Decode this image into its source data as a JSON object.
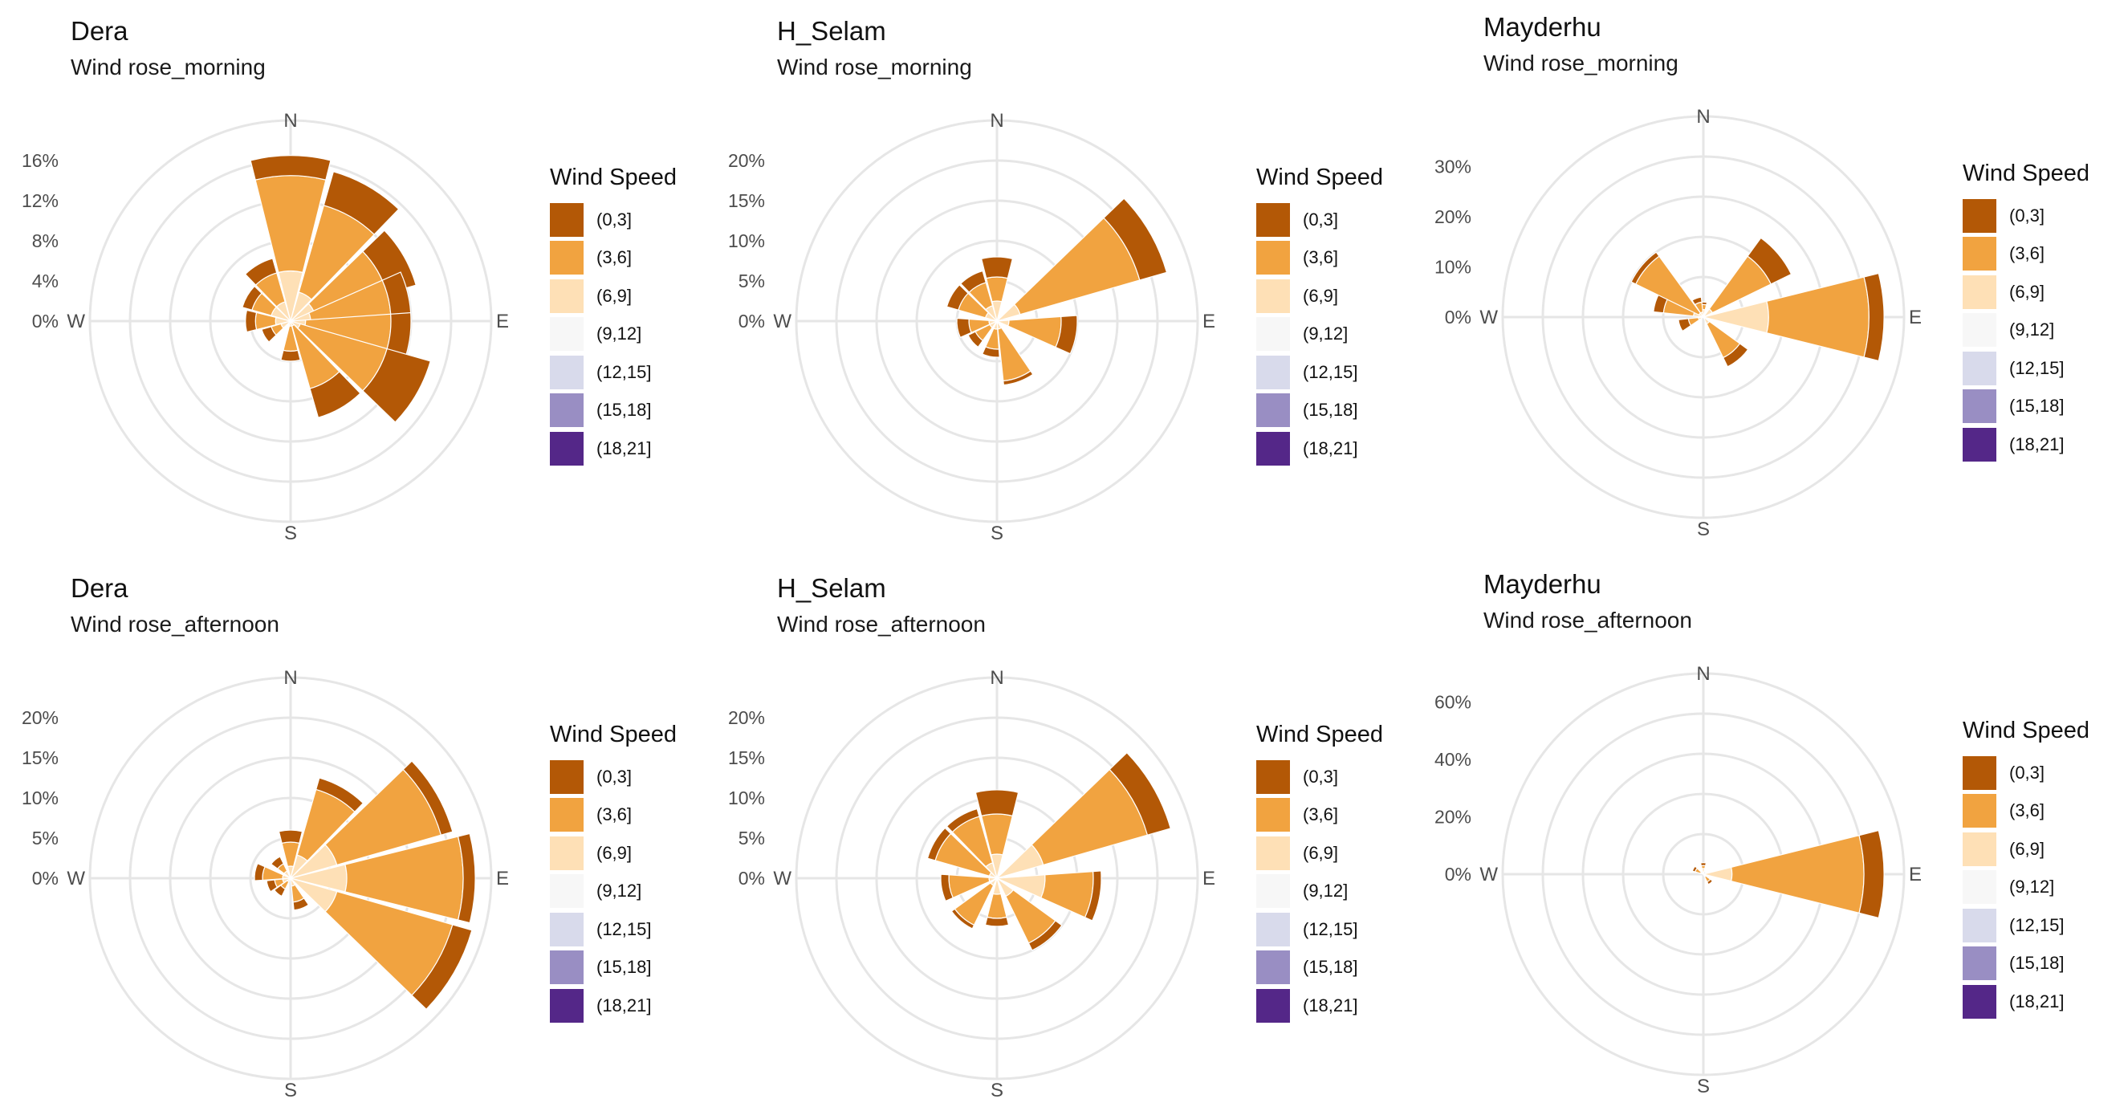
{
  "legend": {
    "title": "Wind Speed",
    "bins": [
      "(0,3]",
      "(3,6]",
      "(6,9]",
      "(9,12]",
      "(12,15]",
      "(15,18]",
      "(18,21]"
    ],
    "colors": [
      "#b35806",
      "#f1a340",
      "#fee0b6",
      "#f7f7f7",
      "#d8daeb",
      "#998ec3",
      "#542788"
    ]
  },
  "chart_data": [
    {
      "type": "wind_rose",
      "title": "Dera",
      "subtitle": "Wind rose_morning",
      "directions": [
        "N",
        "E",
        "S",
        "W"
      ],
      "rmax": 20,
      "ticks": [
        0,
        4,
        8,
        12,
        16
      ],
      "tick_labels": [
        "0%",
        "4%",
        "8%",
        "12%",
        "16%"
      ],
      "sectors": [
        {
          "bearing": 0,
          "cum": [
            5,
            14.5,
            16.5
          ]
        },
        {
          "bearing": 30,
          "cum": [
            3,
            12,
            15.5
          ]
        },
        {
          "bearing": 60,
          "cum": [
            2.5,
            10,
            13
          ]
        },
        {
          "bearing": 80,
          "cum": [
            2,
            10,
            12
          ]
        },
        {
          "bearing": 100,
          "cum": [
            1.5,
            10,
            12
          ]
        },
        {
          "bearing": 120,
          "cum": [
            1,
            10,
            14.5
          ]
        },
        {
          "bearing": 150,
          "cum": [
            0.5,
            7,
            10
          ]
        },
        {
          "bearing": 180,
          "cum": [
            0.5,
            3,
            4
          ]
        },
        {
          "bearing": 240,
          "cum": [
            1,
            2,
            3
          ]
        },
        {
          "bearing": 270,
          "cum": [
            1.5,
            3.5,
            4.5
          ]
        },
        {
          "bearing": 300,
          "cum": [
            2,
            4,
            5
          ]
        },
        {
          "bearing": 330,
          "cum": [
            2,
            5,
            6.5
          ]
        }
      ]
    },
    {
      "type": "wind_rose",
      "title": "H_Selam",
      "subtitle": "Wind rose_morning",
      "directions": [
        "N",
        "E",
        "S",
        "W"
      ],
      "rmax": 25,
      "ticks": [
        0,
        5,
        10,
        15,
        20
      ],
      "tick_labels": [
        "0%",
        "5%",
        "10%",
        "15%",
        "20%"
      ],
      "sectors": [
        {
          "bearing": 0,
          "cum": [
            2.5,
            5.5,
            8
          ]
        },
        {
          "bearing": 60,
          "cum": [
            3,
            18.5,
            22
          ]
        },
        {
          "bearing": 100,
          "cum": [
            1.5,
            8,
            10
          ]
        },
        {
          "bearing": 160,
          "cum": [
            1,
            7.5,
            8
          ]
        },
        {
          "bearing": 190,
          "cum": [
            1,
            3.5,
            4.5
          ]
        },
        {
          "bearing": 230,
          "cum": [
            1,
            3,
            4
          ]
        },
        {
          "bearing": 260,
          "cum": [
            1,
            3.5,
            5
          ]
        },
        {
          "bearing": 300,
          "cum": [
            1.5,
            5,
            6.5
          ]
        },
        {
          "bearing": 330,
          "cum": [
            2,
            5,
            6.5
          ]
        }
      ]
    },
    {
      "type": "wind_rose",
      "title": "Mayderhu",
      "subtitle": "Wind rose_morning",
      "directions": [
        "N",
        "E",
        "S",
        "W"
      ],
      "rmax": 40,
      "ticks": [
        0,
        10,
        20,
        30
      ],
      "tick_labels": [
        "0%",
        "10%",
        "20%",
        "30%"
      ],
      "sectors": [
        {
          "bearing": 0,
          "cum": [
            1.5,
            2.5,
            3
          ]
        },
        {
          "bearing": 50,
          "cum": [
            2,
            15,
            19.5
          ]
        },
        {
          "bearing": 90,
          "cum": [
            13,
            33,
            36
          ]
        },
        {
          "bearing": 140,
          "cum": [
            1.5,
            9,
            11
          ]
        },
        {
          "bearing": 250,
          "cum": [
            1,
            3,
            5
          ]
        },
        {
          "bearing": 290,
          "cum": [
            2,
            8,
            10
          ]
        },
        {
          "bearing": 310,
          "cum": [
            1,
            15,
            16
          ]
        },
        {
          "bearing": 340,
          "cum": [
            1,
            3,
            4
          ]
        }
      ]
    },
    {
      "type": "wind_rose",
      "title": "Dera",
      "subtitle": "Wind rose_afternoon",
      "directions": [
        "N",
        "E",
        "S",
        "W"
      ],
      "rmax": 25,
      "ticks": [
        0,
        5,
        10,
        15,
        20
      ],
      "tick_labels": [
        "0%",
        "5%",
        "10%",
        "15%",
        "20%"
      ],
      "sectors": [
        {
          "bearing": 0,
          "cum": [
            1.5,
            4.5,
            6
          ]
        },
        {
          "bearing": 30,
          "cum": [
            3,
            11.5,
            13
          ]
        },
        {
          "bearing": 60,
          "cum": [
            6,
            19.5,
            21
          ]
        },
        {
          "bearing": 90,
          "cum": [
            7,
            21.5,
            23
          ]
        },
        {
          "bearing": 120,
          "cum": [
            6,
            21,
            23.5
          ]
        },
        {
          "bearing": 160,
          "cum": [
            1,
            3,
            4
          ]
        },
        {
          "bearing": 220,
          "cum": [
            0.5,
            1.5,
            2.5
          ]
        },
        {
          "bearing": 250,
          "cum": [
            1,
            2,
            3
          ]
        },
        {
          "bearing": 280,
          "cum": [
            1,
            3.5,
            4.5
          ]
        },
        {
          "bearing": 320,
          "cum": [
            1,
            2,
            3
          ]
        }
      ]
    },
    {
      "type": "wind_rose",
      "title": "H_Selam",
      "subtitle": "Wind rose_afternoon",
      "directions": [
        "N",
        "E",
        "S",
        "W"
      ],
      "rmax": 25,
      "ticks": [
        0,
        5,
        10,
        15,
        20
      ],
      "tick_labels": [
        "0%",
        "5%",
        "10%",
        "15%",
        "20%"
      ],
      "sectors": [
        {
          "bearing": 0,
          "cum": [
            3,
            8,
            11
          ]
        },
        {
          "bearing": 60,
          "cum": [
            6,
            19.5,
            22.5
          ]
        },
        {
          "bearing": 100,
          "cum": [
            6,
            12,
            13
          ]
        },
        {
          "bearing": 140,
          "cum": [
            2.5,
            9,
            10
          ]
        },
        {
          "bearing": 180,
          "cum": [
            2,
            5,
            6
          ]
        },
        {
          "bearing": 220,
          "cum": [
            1,
            6.5,
            7
          ]
        },
        {
          "bearing": 260,
          "cum": [
            1,
            6,
            7
          ]
        },
        {
          "bearing": 300,
          "cum": [
            1,
            8,
            9
          ]
        },
        {
          "bearing": 330,
          "cum": [
            2,
            8,
            9
          ]
        }
      ]
    },
    {
      "type": "wind_rose",
      "title": "Mayderhu",
      "subtitle": "Wind rose_afternoon",
      "directions": [
        "N",
        "E",
        "S",
        "W"
      ],
      "rmax": 70,
      "ticks": [
        0,
        20,
        40,
        60
      ],
      "tick_labels": [
        "0%",
        "20%",
        "40%",
        "60%"
      ],
      "sectors": [
        {
          "bearing": 0,
          "cum": [
            2,
            3,
            4
          ]
        },
        {
          "bearing": 90,
          "cum": [
            10,
            56,
            63
          ]
        },
        {
          "bearing": 140,
          "cum": [
            1,
            3,
            4
          ]
        },
        {
          "bearing": 300,
          "cum": [
            1,
            3,
            4
          ]
        }
      ]
    }
  ]
}
